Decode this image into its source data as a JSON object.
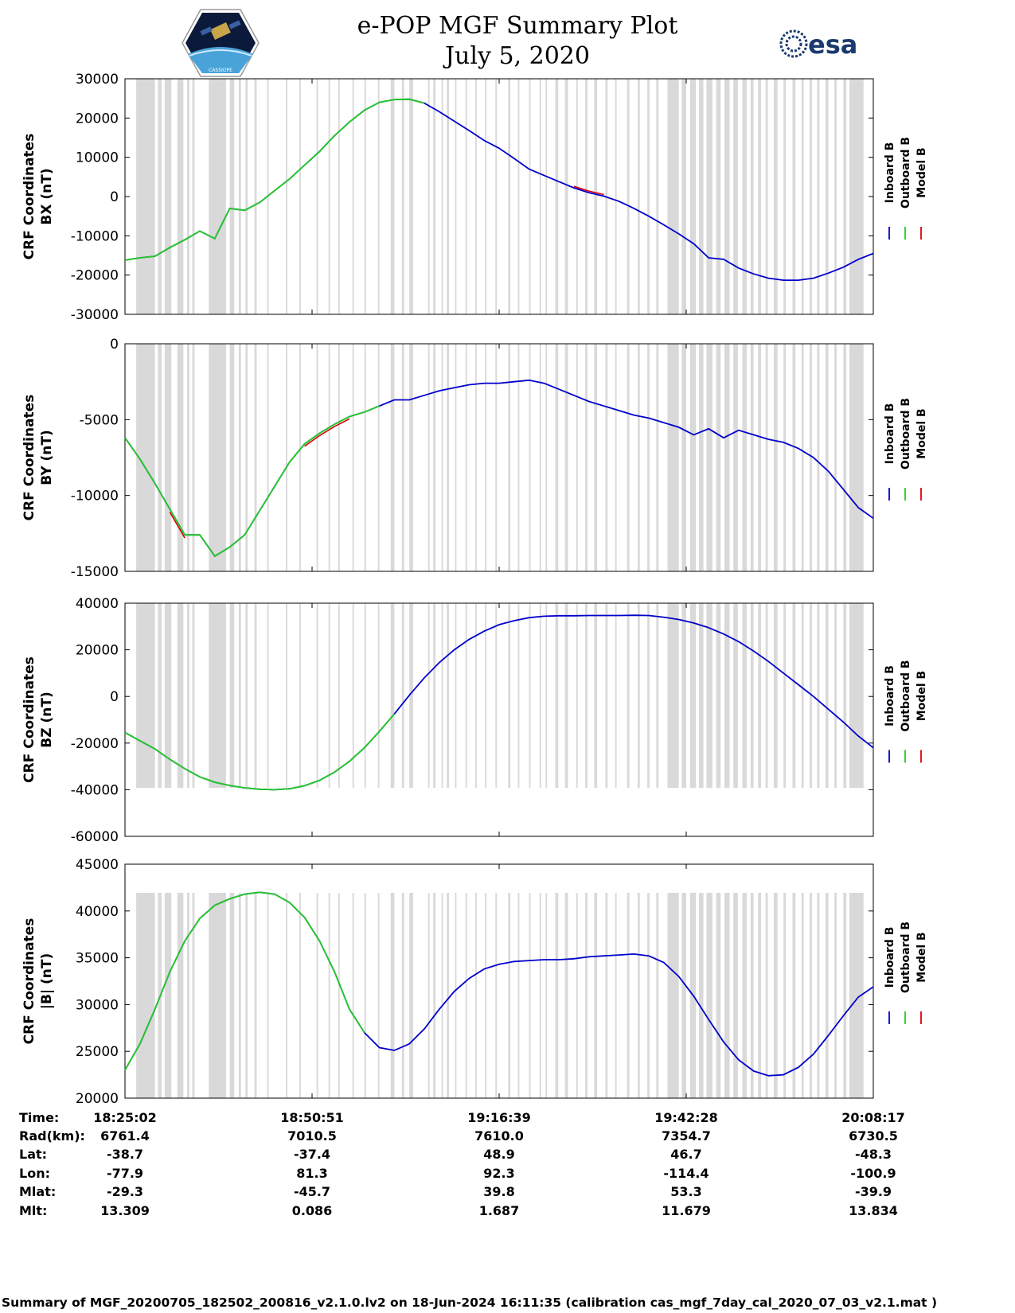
{
  "header": {
    "title_line1": "e-POP MGF Summary Plot",
    "title_line2": "July 5, 2020",
    "logo_left": "CASSIOPE",
    "logo_right": "esa"
  },
  "colors": {
    "inboard": "#0000cc",
    "outboard": "#22cc22",
    "model": "#dd0000",
    "shade": "#d9d9d9"
  },
  "legend": [
    "Inboard B",
    "Outboard B",
    "Model B"
  ],
  "chart_data": [
    {
      "type": "line",
      "ylabel_line1": "CRF Coordinates",
      "ylabel_line2": "BX (nT)",
      "ylim": [
        -30000,
        30000
      ],
      "yticks": [
        "30000",
        "20000",
        "10000",
        "0",
        "-10000",
        "-20000",
        "-30000"
      ],
      "ytick_values": [
        30000,
        20000,
        10000,
        0,
        -10000,
        -20000,
        -30000
      ],
      "x": [
        0,
        2,
        4,
        6,
        8,
        10,
        12,
        14,
        16,
        18,
        20,
        22,
        24,
        26,
        28,
        30,
        32,
        34,
        36,
        38,
        40,
        42,
        44,
        46,
        48,
        50,
        52,
        54,
        56,
        58,
        60,
        62,
        64,
        66,
        68,
        70,
        72,
        74,
        76,
        78,
        80,
        82,
        84,
        86,
        88,
        90,
        92,
        94,
        96,
        98,
        100
      ],
      "inboard": [
        -16200,
        -15600,
        -15200,
        -13000,
        -11000,
        -8800,
        -10700,
        -3000,
        -3500,
        -1500,
        1500,
        4500,
        8000,
        11500,
        15500,
        19000,
        22000,
        24000,
        24700,
        24800,
        23800,
        21600,
        19200,
        16800,
        14300,
        12300,
        9700,
        7000,
        5400,
        3800,
        2200,
        1000,
        100,
        -1200,
        -3000,
        -5000,
        -7200,
        -9500,
        -12000,
        -15600,
        -16000,
        -18200,
        -19700,
        -20800,
        -21300,
        -21300,
        -20800,
        -19500,
        -18000,
        -16000,
        -14500
      ],
      "outboard_until": 40,
      "model_dev": [
        [
          60,
          64,
          400
        ]
      ],
      "gap_at": -1
    },
    {
      "type": "line",
      "ylabel_line1": "CRF Coordinates",
      "ylabel_line2": "BY (nT)",
      "ylim": [
        -15000,
        0
      ],
      "yticks": [
        "0",
        "-5000",
        "-10000",
        "-15000"
      ],
      "ytick_values": [
        0,
        -5000,
        -10000,
        -15000
      ],
      "x": [
        0,
        2,
        4,
        6,
        8,
        10,
        12,
        14,
        16,
        18,
        20,
        22,
        24,
        26,
        28,
        30,
        32,
        34,
        36,
        38,
        40,
        42,
        44,
        46,
        48,
        50,
        52,
        54,
        56,
        58,
        60,
        62,
        64,
        66,
        68,
        70,
        72,
        74,
        76,
        78,
        80,
        82,
        84,
        86,
        88,
        90,
        92,
        94,
        96,
        98,
        100
      ],
      "inboard": [
        -6200,
        -7600,
        -9200,
        -10900,
        -12600,
        -12600,
        -14000,
        -13400,
        -12600,
        -11000,
        -9400,
        -7800,
        -6600,
        -5900,
        -5300,
        -4800,
        -4500,
        -4100,
        -3700,
        -3700,
        -3400,
        -3100,
        -2900,
        -2700,
        -2600,
        -2600,
        -2500,
        -2400,
        -2600,
        -3000,
        -3400,
        -3800,
        -4100,
        -4400,
        -4700,
        -4900,
        -5200,
        -5500,
        -6000,
        -5600,
        -6200,
        -5700,
        -6000,
        -6300,
        -6500,
        -6900,
        -7500,
        -8400,
        -9600,
        -10800,
        -11500
      ],
      "outboard_until": 34,
      "model_dev": [
        [
          24,
          30,
          -150
        ],
        [
          6,
          8,
          -200
        ]
      ],
      "gap_at": -1
    },
    {
      "type": "line",
      "ylabel_line1": "CRF Coordinates",
      "ylabel_line2": "BZ (nT)",
      "ylim": [
        -60000,
        40000
      ],
      "yticks": [
        "40000",
        "20000",
        "0",
        "-20000",
        "-40000",
        "-60000"
      ],
      "ytick_values": [
        40000,
        20000,
        0,
        -20000,
        -40000,
        -60000
      ],
      "x": [
        0,
        2,
        4,
        6,
        8,
        10,
        12,
        14,
        16,
        18,
        20,
        22,
        24,
        26,
        28,
        30,
        32,
        34,
        36,
        38,
        40,
        42,
        44,
        46,
        48,
        50,
        52,
        54,
        56,
        58,
        60,
        62,
        64,
        66,
        68,
        70,
        72,
        74,
        76,
        78,
        80,
        82,
        84,
        86,
        88,
        90,
        92,
        94,
        96,
        98,
        100
      ],
      "inboard": [
        -15500,
        -19000,
        -22500,
        -27000,
        -31000,
        -34500,
        -36800,
        -38200,
        -39200,
        -39800,
        -40000,
        -39600,
        -38300,
        -36000,
        -32500,
        -27800,
        -22000,
        -15000,
        -7500,
        500,
        8000,
        14500,
        20000,
        24500,
        28000,
        30800,
        32500,
        33800,
        34400,
        34600,
        34600,
        34700,
        34700,
        34700,
        34800,
        34700,
        34000,
        33000,
        31500,
        29500,
        26800,
        23500,
        19500,
        15000,
        10000,
        5000,
        0,
        -5500,
        -11000,
        -17000,
        -22000
      ],
      "outboard_until": 36,
      "model_dev": [],
      "gap_at": -1
    },
    {
      "type": "line",
      "ylabel_line1": "CRF Coordinates",
      "ylabel_line2": "|B| (nT)",
      "ylim": [
        20000,
        45000
      ],
      "yticks": [
        "45000",
        "40000",
        "35000",
        "30000",
        "25000",
        "20000"
      ],
      "ytick_values": [
        45000,
        40000,
        35000,
        30000,
        25000,
        20000
      ],
      "x": [
        0,
        2,
        4,
        6,
        8,
        10,
        12,
        14,
        16,
        18,
        20,
        22,
        24,
        26,
        28,
        30,
        32,
        34,
        36,
        38,
        40,
        42,
        44,
        46,
        48,
        50,
        52,
        54,
        56,
        58,
        60,
        62,
        64,
        66,
        68,
        70,
        72,
        74,
        76,
        78,
        80,
        82,
        84,
        86,
        88,
        90,
        92,
        94,
        96,
        98,
        100
      ],
      "inboard": [
        23000,
        25800,
        29500,
        33500,
        36800,
        39200,
        40600,
        41300,
        41800,
        42000,
        41800,
        40900,
        39300,
        36800,
        33500,
        29500,
        27000,
        25400,
        25100,
        25800,
        27400,
        29500,
        31400,
        32800,
        33800,
        34300,
        34600,
        34700,
        34800,
        34800,
        34900,
        35100,
        35200,
        35300,
        35400,
        35200,
        34500,
        33000,
        30900,
        28400,
        26000,
        24100,
        22900,
        22400,
        22500,
        23300,
        24700,
        26700,
        28800,
        30800,
        31900
      ],
      "outboard_until": 32,
      "model_dev": [],
      "gap_at": -1
    }
  ],
  "shade_bands": [
    [
      1.5,
      4.0
    ],
    [
      4.4,
      4.9
    ],
    [
      5.3,
      6.2
    ],
    [
      7.0,
      7.8
    ],
    [
      8.3,
      8.6
    ],
    [
      9.0,
      9.3
    ],
    [
      11.2,
      13.5
    ],
    [
      14.0,
      14.6
    ],
    [
      15.2,
      15.5
    ],
    [
      16.1,
      16.4
    ],
    [
      17.3,
      17.6
    ],
    [
      19.0,
      19.2
    ],
    [
      21.5,
      21.7
    ],
    [
      23.3,
      23.5
    ],
    [
      25.6,
      25.8
    ],
    [
      27.2,
      27.4
    ],
    [
      28.5,
      28.7
    ],
    [
      30.4,
      30.6
    ],
    [
      32.0,
      32.2
    ],
    [
      33.8,
      34.0
    ],
    [
      35.5,
      36.0
    ],
    [
      37.0,
      37.3
    ],
    [
      38.0,
      38.5
    ],
    [
      40.5,
      40.7
    ],
    [
      41.2,
      41.5
    ],
    [
      42.3,
      42.5
    ],
    [
      43.0,
      43.3
    ],
    [
      44.1,
      44.3
    ],
    [
      45.5,
      45.7
    ],
    [
      46.8,
      47.0
    ],
    [
      48.1,
      48.3
    ],
    [
      49.5,
      49.7
    ],
    [
      51.2,
      51.5
    ],
    [
      52.5,
      52.7
    ],
    [
      54.0,
      54.2
    ],
    [
      55.4,
      55.6
    ],
    [
      56.2,
      56.4
    ],
    [
      57.5,
      57.9
    ],
    [
      58.8,
      59.2
    ],
    [
      60.3,
      60.5
    ],
    [
      61.5,
      61.8
    ],
    [
      62.7,
      63.1
    ],
    [
      64.2,
      64.5
    ],
    [
      65.5,
      65.7
    ],
    [
      67.1,
      67.4
    ],
    [
      68.5,
      68.8
    ],
    [
      69.8,
      70.1
    ],
    [
      71.0,
      71.3
    ],
    [
      72.5,
      74.0
    ],
    [
      74.4,
      75.0
    ],
    [
      75.5,
      76.3
    ],
    [
      76.7,
      77.3
    ],
    [
      77.7,
      78.5
    ],
    [
      79.0,
      79.6
    ],
    [
      80.1,
      80.8
    ],
    [
      81.3,
      81.9
    ],
    [
      82.5,
      83.1
    ],
    [
      83.6,
      84.0
    ],
    [
      84.6,
      85.0
    ],
    [
      85.6,
      85.9
    ],
    [
      86.7,
      87.2
    ],
    [
      88.0,
      88.3
    ],
    [
      89.2,
      89.6
    ],
    [
      90.4,
      90.7
    ],
    [
      91.5,
      91.8
    ],
    [
      92.5,
      92.8
    ],
    [
      93.6,
      94.0
    ],
    [
      94.8,
      95.1
    ],
    [
      96.0,
      96.4
    ],
    [
      96.8,
      98.7
    ]
  ],
  "info": {
    "labels": [
      "Time:",
      "Rad(km):",
      "Lat:",
      "Lon:",
      "Mlat:",
      "Mlt:"
    ],
    "columns": [
      [
        "18:25:02",
        "6761.4",
        "-38.7",
        "-77.9",
        "-29.3",
        "13.309"
      ],
      [
        "18:50:51",
        "7010.5",
        "-37.4",
        "81.3",
        "-45.7",
        "0.086"
      ],
      [
        "19:16:39",
        "7610.0",
        "48.9",
        "92.3",
        "39.8",
        "1.687"
      ],
      [
        "19:42:28",
        "7354.7",
        "46.7",
        "-114.4",
        "53.3",
        "11.679"
      ],
      [
        "20:08:17",
        "6730.5",
        "-48.3",
        "-100.9",
        "-39.9",
        "13.834"
      ]
    ]
  },
  "footer": "Summary of MGF_20200705_182502_200816_v2.1.0.lv2 on 18-Jun-2024 16:11:35 (calibration cas_mgf_7day_cal_2020_07_03_v2.1.mat )"
}
